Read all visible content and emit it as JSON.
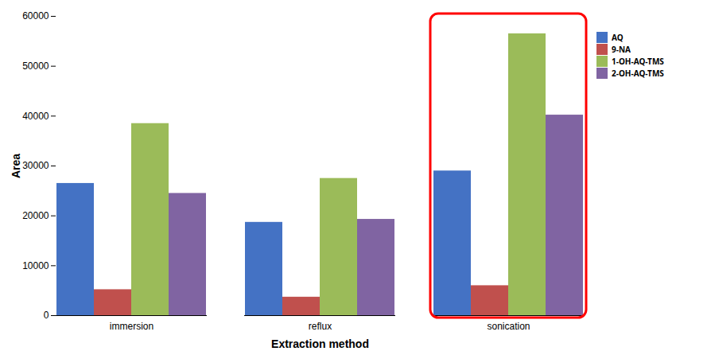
{
  "chart_data": {
    "type": "bar",
    "xlabel": "Extraction method",
    "ylabel": "Area",
    "categories": [
      "immersion",
      "reflux",
      "sonication"
    ],
    "series": [
      {
        "name": "AQ",
        "color": "#4472C4",
        "values": [
          26500,
          18700,
          29000
        ]
      },
      {
        "name": "9-NA",
        "color": "#C0504D",
        "values": [
          5200,
          3700,
          6000
        ]
      },
      {
        "name": "1-OH-AQ-TMS",
        "color": "#9BBB59",
        "values": [
          38500,
          27500,
          56500
        ]
      },
      {
        "name": "2-OH-AQ-TMS",
        "color": "#8064A2",
        "values": [
          24500,
          19300,
          40200
        ]
      }
    ],
    "ylim": [
      0,
      60000
    ],
    "yticks": [
      0,
      10000,
      20000,
      30000,
      40000,
      50000,
      60000
    ],
    "grid": false,
    "legend": "right",
    "highlight": {
      "category": "sonication",
      "color": "#FF0000"
    }
  }
}
